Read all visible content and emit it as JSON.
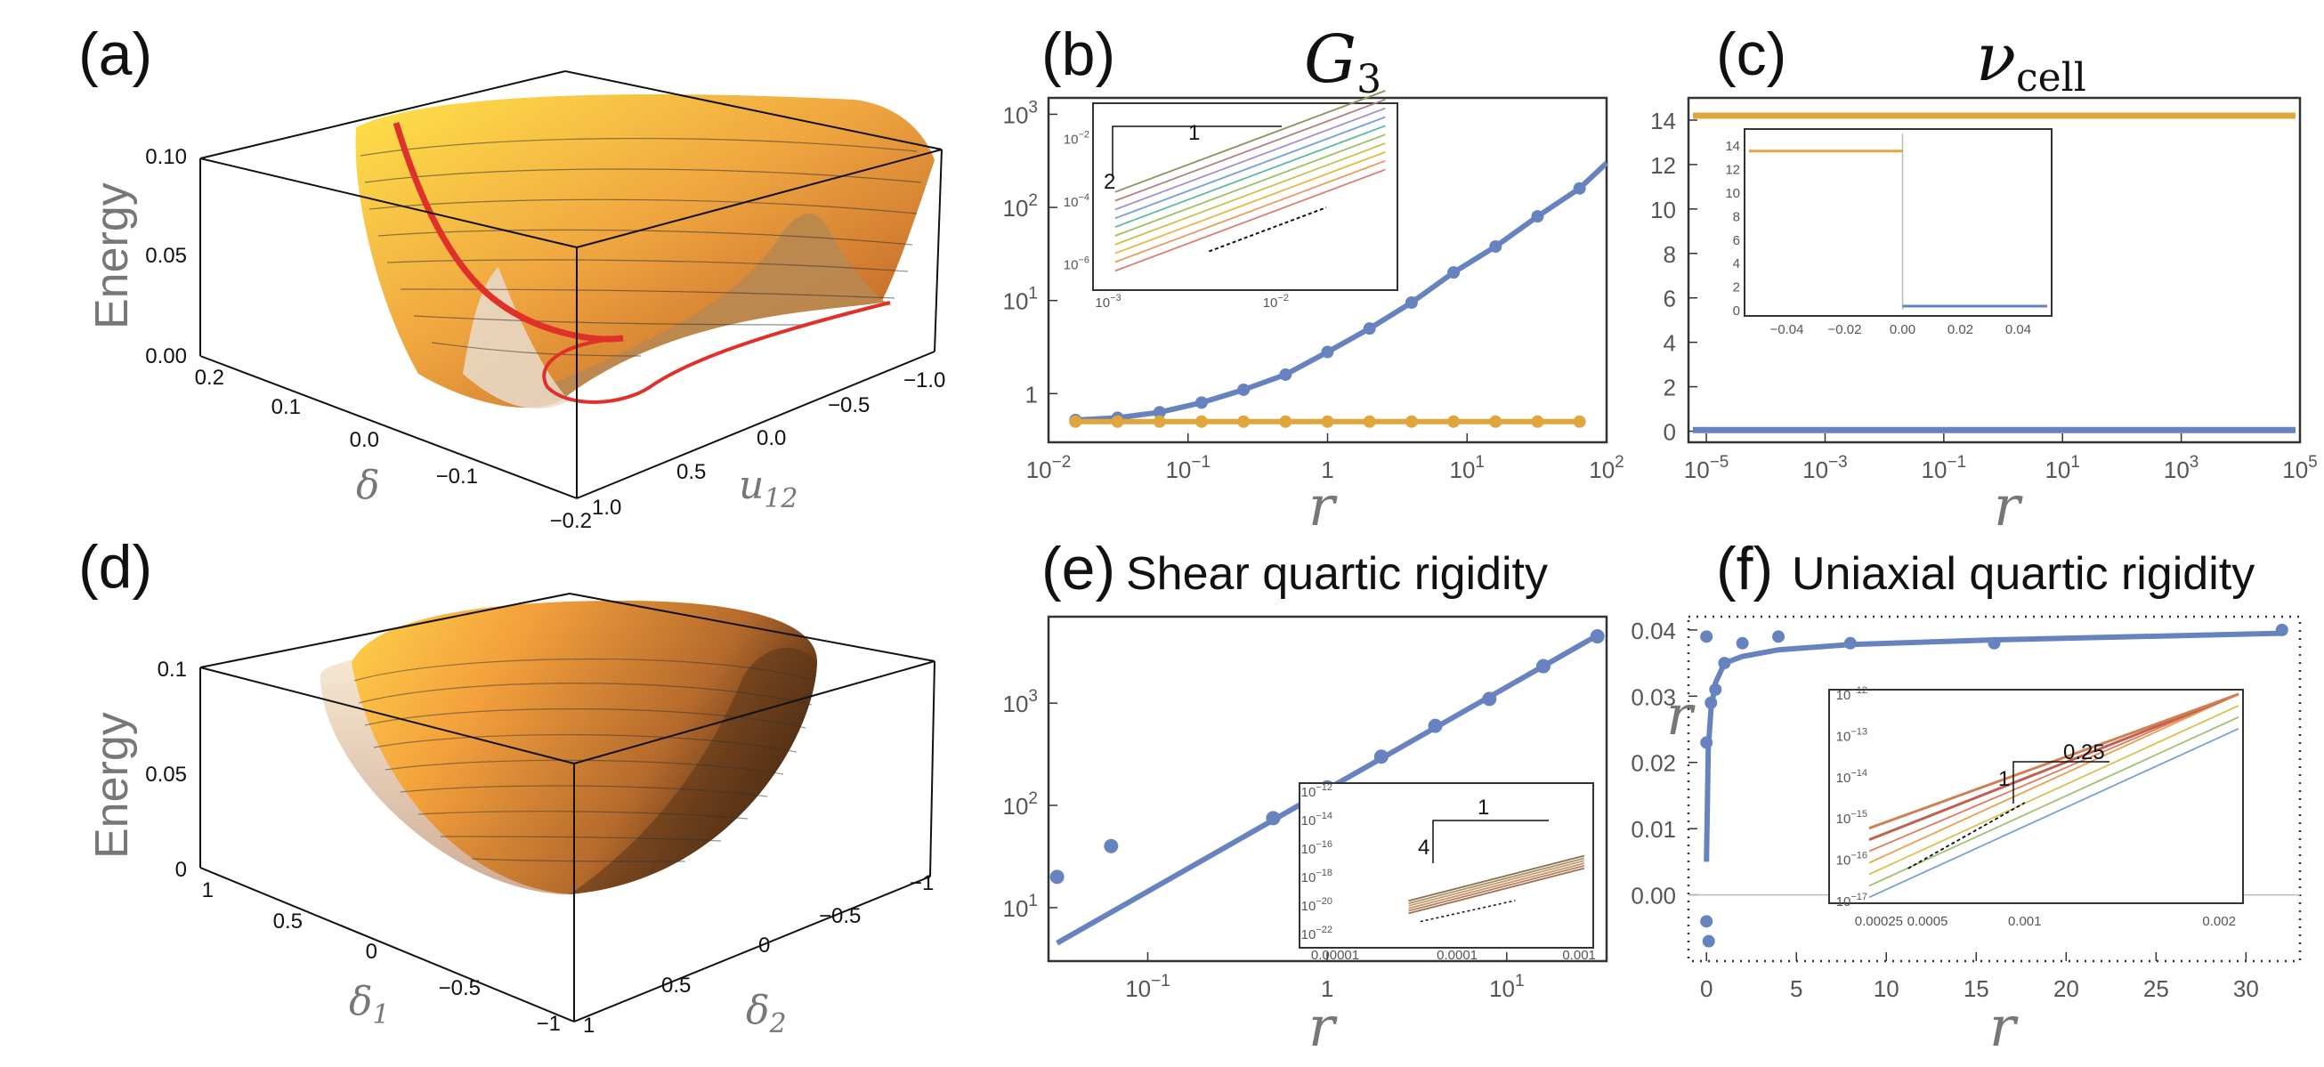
{
  "panels": {
    "a": {
      "label": "(a)",
      "zlabel": "Energy",
      "delta_label": "δ",
      "u_label": "u",
      "u_sub": "12",
      "zticks": [
        "0.10",
        "0.05",
        "0.00"
      ],
      "delta_ticks": [
        "0.2",
        "0.1",
        "0.0",
        "−0.1",
        "−0.2"
      ],
      "u_ticks": [
        "1.0",
        "0.5",
        "0.0",
        "−0.5",
        "−1.0"
      ]
    },
    "d": {
      "label": "(d)",
      "zlabel": "Energy",
      "d1_label": "δ",
      "d1_sub": "1",
      "d2_label": "δ",
      "d2_sub": "2",
      "zticks": [
        "0.1",
        "0.05",
        "0"
      ],
      "d1_ticks": [
        "1",
        "0.5",
        "0",
        "−0.5",
        "−1"
      ],
      "d2_ticks": [
        "1",
        "0.5",
        "0",
        "−0.5",
        "−1"
      ]
    },
    "b": {
      "label": "(b)",
      "title_main": "G",
      "title_sub": "3",
      "xlabel": "r",
      "slope_run": "1",
      "slope_rise": "2"
    },
    "c": {
      "label": "(c)",
      "title_main": "ν",
      "title_sub": "cell",
      "xlabel": "r"
    },
    "e": {
      "label": "(e)",
      "title": "Shear quartic rigidity",
      "xlabel": "r",
      "slope_run": "1",
      "slope_rise": "4"
    },
    "f": {
      "label": "(f)",
      "title": "Uniaxial quartic rigidity",
      "xlabel": "r",
      "ylabel": "r",
      "slope_run": "0.25",
      "slope_rise": "1"
    }
  },
  "colors": {
    "blue": "#6683c0",
    "orange": "#e0a63c",
    "red": "#e0302a"
  },
  "chart_data": [
    {
      "id": "b",
      "type": "line",
      "title": "G3",
      "xlabel": "r",
      "xscale": "log",
      "yscale": "log",
      "xlim": [
        0.01,
        100
      ],
      "ylim": [
        0.3,
        1500
      ],
      "xticks": [
        {
          "v": 0.01,
          "m": "10",
          "e": "−2"
        },
        {
          "v": 0.1,
          "m": "10",
          "e": "−1"
        },
        {
          "v": 1,
          "m": "1",
          "e": ""
        },
        {
          "v": 10,
          "m": "10",
          "e": "1"
        },
        {
          "v": 100,
          "m": "10",
          "e": "2"
        }
      ],
      "yticks": [
        {
          "v": 1,
          "m": "1",
          "e": ""
        },
        {
          "v": 10,
          "m": "10",
          "e": "1"
        },
        {
          "v": 100,
          "m": "10",
          "e": "2"
        },
        {
          "v": 1000,
          "m": "10",
          "e": "3"
        }
      ],
      "series": [
        {
          "name": "blue",
          "color": "#6683c0",
          "x": [
            0.0156,
            0.03125,
            0.0625,
            0.125,
            0.25,
            0.5,
            1,
            2,
            4,
            8,
            16,
            32,
            64,
            100
          ],
          "y": [
            0.52,
            0.55,
            0.63,
            0.8,
            1.1,
            1.6,
            2.8,
            5,
            9.5,
            20,
            38,
            80,
            160,
            300
          ]
        },
        {
          "name": "orange",
          "color": "#e0a63c",
          "x": [
            0.0156,
            0.03125,
            0.0625,
            0.125,
            0.25,
            0.5,
            1,
            2,
            4,
            8,
            16,
            32,
            64
          ],
          "y": [
            0.5,
            0.5,
            0.5,
            0.5,
            0.5,
            0.5,
            0.5,
            0.5,
            0.5,
            0.5,
            0.5,
            0.5,
            0.5
          ]
        }
      ],
      "inset": {
        "xlim": [
          0.001,
          0.05
        ],
        "ylim": [
          3e-07,
          0.1
        ],
        "xticks": [
          {
            "v": 0.001,
            "m": "10",
            "e": "−3"
          },
          {
            "v": 0.01,
            "m": "10",
            "e": "−2"
          }
        ],
        "yticks": [
          {
            "v": 1e-06,
            "m": "10",
            "e": "−6"
          },
          {
            "v": 0.0001,
            "m": "10",
            "e": "−4"
          },
          {
            "v": 0.01,
            "m": "10",
            "e": "−2"
          }
        ],
        "slope": 2,
        "n_lines": 10
      }
    },
    {
      "id": "c",
      "type": "line",
      "title": "νcell",
      "xlabel": "r",
      "xscale": "log",
      "yscale": "linear",
      "xlim": [
        5e-06,
        100000
      ],
      "ylim": [
        -0.5,
        15
      ],
      "xticks": [
        {
          "v": 1e-05,
          "m": "10",
          "e": "−5"
        },
        {
          "v": 0.001,
          "m": "10",
          "e": "−3"
        },
        {
          "v": 0.1,
          "m": "10",
          "e": "−1"
        },
        {
          "v": 10,
          "m": "10",
          "e": "1"
        },
        {
          "v": 1000,
          "m": "10",
          "e": "3"
        },
        {
          "v": 100000,
          "m": "10",
          "e": "5"
        }
      ],
      "yticks": [
        0,
        2,
        4,
        6,
        8,
        10,
        12,
        14
      ],
      "series": [
        {
          "name": "orange",
          "color": "#e0a63c",
          "y_const": 14.2
        },
        {
          "name": "blue",
          "color": "#6683c0",
          "y_const": 0.05
        }
      ],
      "inset": {
        "xlim": [
          -0.05,
          0.05
        ],
        "ylim": [
          0,
          15
        ],
        "xticks": [
          -0.04,
          -0.02,
          0.0,
          0.02,
          0.04
        ],
        "xtick_labels": [
          "−0.04",
          "−0.02",
          "0.00",
          "0.02",
          "0.04"
        ],
        "yticks": [
          0,
          2,
          4,
          6,
          8,
          10,
          12,
          14
        ],
        "orange_y": 13.5,
        "blue_y": 0.3
      }
    },
    {
      "id": "e",
      "type": "scatter",
      "title": "Shear quartic rigidity",
      "xlabel": "r",
      "xscale": "log",
      "yscale": "log",
      "xlim": [
        0.028,
        36
      ],
      "ylim": [
        3,
        7000
      ],
      "xticks": [
        {
          "v": 0.1,
          "m": "10",
          "e": "−1"
        },
        {
          "v": 1,
          "m": "1",
          "e": ""
        },
        {
          "v": 10,
          "m": "10",
          "e": "1"
        }
      ],
      "yticks": [
        {
          "v": 10,
          "m": "10",
          "e": "1"
        },
        {
          "v": 100,
          "m": "10",
          "e": "2"
        },
        {
          "v": 1000,
          "m": "10",
          "e": "3"
        }
      ],
      "points": {
        "x": [
          0.03125,
          0.0625,
          0.5,
          1,
          2,
          4,
          8,
          16,
          32
        ],
        "y": [
          20,
          40,
          75,
          150,
          300,
          600,
          1100,
          2300,
          4500
        ]
      },
      "fit": {
        "x": [
          0.03125,
          32
        ],
        "y": [
          4.5,
          4600
        ]
      },
      "inset": {
        "xlim": [
          1e-05,
          0.0012
        ],
        "ylim": [
          1e-22,
          1e-12
        ],
        "xticks": [
          1e-05,
          0.0001,
          0.001
        ],
        "xtick_labels": [
          "0.00001",
          "0.0001",
          "0.001"
        ],
        "yticks": [
          1e-22,
          1e-20,
          1e-18,
          1e-16,
          1e-14,
          1e-12
        ],
        "ytick_e": [
          "−22",
          "−20",
          "−18",
          "−16",
          "−14",
          "−12"
        ],
        "slope": 4,
        "n_lines": 6
      }
    },
    {
      "id": "f",
      "type": "scatter",
      "title": "Uniaxial quartic rigidity",
      "xlabel": "r",
      "ylabel": "r",
      "xscale": "linear",
      "yscale": "linear",
      "xlim": [
        -1,
        33
      ],
      "ylim": [
        -0.01,
        0.042
      ],
      "xticks": [
        0,
        5,
        10,
        15,
        20,
        25,
        30
      ],
      "yticks": [
        0.0,
        0.01,
        0.02,
        0.03,
        0.04
      ],
      "ytick_labels": [
        "0.00",
        "0.01",
        "0.02",
        "0.03",
        "0.04"
      ],
      "points": {
        "x": [
          0,
          0,
          0,
          0.125,
          0.25,
          0.5,
          1,
          2,
          4,
          8,
          16,
          32
        ],
        "y": [
          0.039,
          0.023,
          -0.004,
          -0.007,
          0.029,
          0.031,
          0.035,
          0.038,
          0.039,
          0.038,
          0.038,
          0.04
        ]
      },
      "fit": {
        "x": [
          0,
          0.1,
          0.25,
          0.5,
          1,
          2,
          4,
          8,
          16,
          32
        ],
        "y": [
          0.005,
          0.022,
          0.028,
          0.032,
          0.035,
          0.036,
          0.037,
          0.0378,
          0.0385,
          0.0395
        ]
      },
      "inset": {
        "xlim": [
          0.0002,
          0.0021
        ],
        "ylim": [
          1e-17,
          1e-12
        ],
        "xticks": [
          0.00025,
          0.0005,
          0.001,
          0.002
        ],
        "xtick_labels": [
          "0.00025",
          "0.0005",
          "0.001",
          "0.002"
        ],
        "yticks": [
          1e-17,
          1e-16,
          1e-15,
          1e-14,
          1e-13,
          1e-12
        ],
        "ytick_e": [
          "−17",
          "−16",
          "−15",
          "−14",
          "−13",
          "−12"
        ],
        "slope": 4,
        "n_lines": 7
      }
    }
  ]
}
